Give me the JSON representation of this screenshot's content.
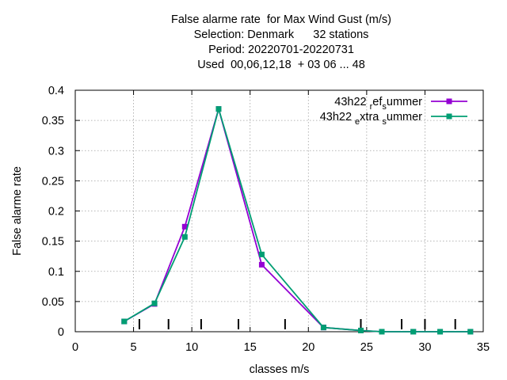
{
  "title_lines": [
    "False alarme rate  for Max Wind Gust (m/s)",
    "Selection: Denmark      32 stations",
    "Period: 20220701-20220731",
    "Used  00,06,12,18  + 03 06 ... 48"
  ],
  "chart_data": {
    "type": "line",
    "xlabel": "classes m/s",
    "ylabel": "False alarme rate",
    "xlim": [
      0,
      35
    ],
    "ylim": [
      0,
      0.4
    ],
    "x_ticks": [
      "0",
      "5",
      "10",
      "15",
      "20",
      "25",
      "30",
      "35"
    ],
    "y_ticks": [
      "0",
      "0.05",
      "0.1",
      "0.15",
      "0.2",
      "0.25",
      "0.3",
      "0.35",
      "0.4"
    ],
    "grid": true,
    "legend_position": "top-right",
    "class_bounds": [
      5.5,
      8,
      10.8,
      14,
      18,
      24.5,
      28,
      30,
      32.6
    ],
    "series": [
      {
        "name": "43h22_ref_summer",
        "legend_parts": [
          "43h22 ",
          "r",
          "ef",
          "s",
          "ummer"
        ],
        "color": "#9400d3",
        "x": [
          4.2,
          6.8,
          9.4,
          12.3,
          16.0,
          21.3,
          24.5,
          26.3,
          29.0,
          31.3,
          33.9
        ],
        "y": [
          0.017,
          0.046,
          0.174,
          0.369,
          0.111,
          0.007,
          0.002,
          0.0,
          0.0,
          0.0,
          0.0
        ]
      },
      {
        "name": "43h22_extra_summer",
        "legend_parts": [
          "43h22 ",
          "e",
          "xtra ",
          "s",
          "ummer"
        ],
        "color": "#009e73",
        "x": [
          4.2,
          6.8,
          9.4,
          12.3,
          16.0,
          21.3,
          24.5,
          26.3,
          29.0,
          31.3,
          33.9
        ],
        "y": [
          0.017,
          0.047,
          0.157,
          0.369,
          0.128,
          0.007,
          0.002,
          0.0,
          0.0,
          0.0,
          0.0
        ]
      }
    ]
  }
}
